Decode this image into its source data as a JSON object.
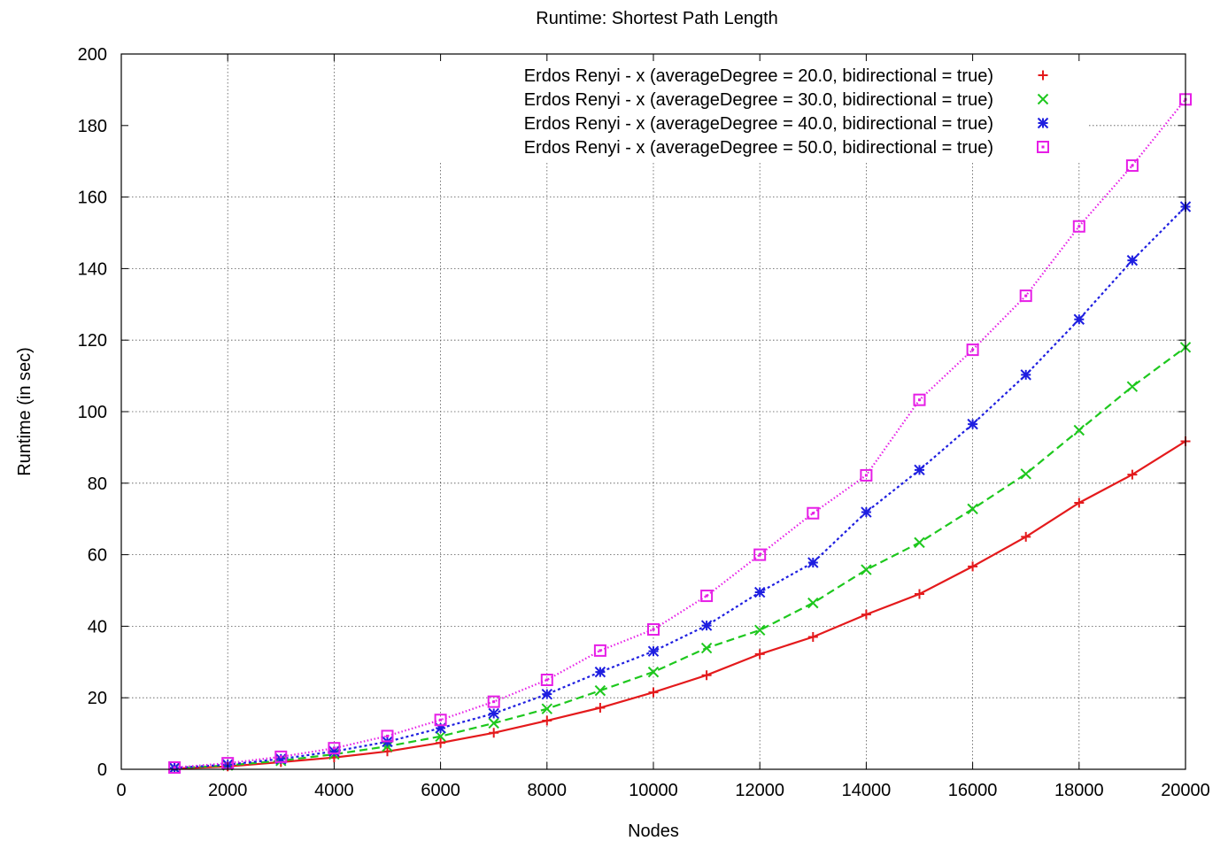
{
  "chart_data": {
    "type": "line",
    "title": "Runtime: Shortest Path Length",
    "xlabel": "Nodes",
    "ylabel": "Runtime (in sec)",
    "xlim": [
      0,
      20000
    ],
    "ylim": [
      0,
      200
    ],
    "xticks": [
      0,
      2000,
      4000,
      6000,
      8000,
      10000,
      12000,
      14000,
      16000,
      18000,
      20000
    ],
    "yticks": [
      0,
      20,
      40,
      60,
      80,
      100,
      120,
      140,
      160,
      180,
      200
    ],
    "grid": true,
    "legend_position": "top-right",
    "x": [
      1000,
      2000,
      3000,
      4000,
      5000,
      6000,
      7000,
      8000,
      9000,
      10000,
      11000,
      12000,
      13000,
      14000,
      15000,
      16000,
      17000,
      18000,
      19000,
      20000
    ],
    "series": [
      {
        "name": "Erdos Renyi - x (averageDegree = 20.0, bidirectional = true)",
        "color": "#e41a1c",
        "marker": "plus",
        "dash": "solid",
        "values": [
          0.2,
          0.8,
          2,
          3.3,
          5,
          7.4,
          10.2,
          13.6,
          17.2,
          21.5,
          26.3,
          32.2,
          37,
          43.3,
          49,
          56.7,
          65,
          74.5,
          82.4,
          91.7
        ]
      },
      {
        "name": "Erdos Renyi - x (averageDegree = 30.0, bidirectional = true)",
        "color": "#1ec81e",
        "marker": "x",
        "dash": "dashed",
        "values": [
          0.3,
          1.1,
          2.4,
          4.2,
          6.4,
          9.2,
          12.9,
          16.9,
          22,
          27.2,
          33.9,
          38.9,
          46.5,
          55.8,
          63.4,
          72.8,
          82.6,
          94.8,
          107,
          118
        ]
      },
      {
        "name": "Erdos Renyi - x (averageDegree = 40.0, bidirectional = true)",
        "color": "#1e1ee0",
        "marker": "asterisk",
        "dash": "dotted",
        "values": [
          0.4,
          1.3,
          2.9,
          5,
          7.7,
          11.5,
          15.6,
          21,
          27.2,
          33,
          40.2,
          49.5,
          57.8,
          71.9,
          83.7,
          96.5,
          110.3,
          125.8,
          142.3,
          157.3
        ]
      },
      {
        "name": "Erdos Renyi - x (averageDegree = 50.0, bidirectional = true)",
        "color": "#e61ee6",
        "marker": "dotted-square",
        "dash": "fine-dotted",
        "values": [
          0.5,
          1.7,
          3.5,
          5.9,
          9.3,
          13.8,
          18.9,
          25,
          33.2,
          39.1,
          48.5,
          60,
          71.6,
          82.2,
          103.3,
          117.3,
          132.4,
          151.8,
          168.8,
          187.3
        ]
      }
    ]
  }
}
